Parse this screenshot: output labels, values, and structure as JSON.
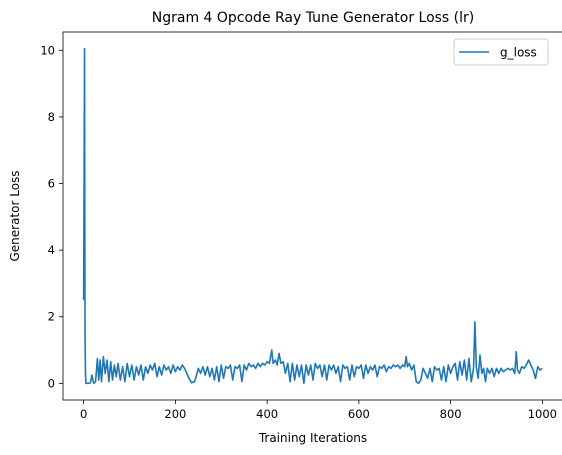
{
  "chart_data": {
    "type": "line",
    "title": "Ngram 4 Opcode Ray Tune Generator Loss (lr)",
    "xlabel": "Training Iterations",
    "ylabel": "Generator Loss",
    "xlim": [
      -45,
      1045
    ],
    "ylim": [
      -0.5,
      10.55
    ],
    "xticks": [
      0,
      200,
      400,
      600,
      800,
      1000
    ],
    "yticks": [
      0,
      2,
      4,
      6,
      8,
      10
    ],
    "grid": false,
    "legend_position": "top-right",
    "series": [
      {
        "name": "g_loss",
        "color": "#1f77b4",
        "points": [
          [
            0,
            2.5
          ],
          [
            2,
            10.05
          ],
          [
            3,
            1.5
          ],
          [
            4,
            0.3
          ],
          [
            5,
            0.0
          ],
          [
            10,
            0.0
          ],
          [
            15,
            0.02
          ],
          [
            18,
            0.25
          ],
          [
            22,
            0.0
          ],
          [
            26,
            0.05
          ],
          [
            30,
            0.75
          ],
          [
            33,
            0.1
          ],
          [
            36,
            0.7
          ],
          [
            39,
            0.05
          ],
          [
            43,
            0.8
          ],
          [
            47,
            0.3
          ],
          [
            51,
            0.7
          ],
          [
            55,
            0.05
          ],
          [
            59,
            0.65
          ],
          [
            63,
            0.1
          ],
          [
            67,
            0.55
          ],
          [
            71,
            0.2
          ],
          [
            75,
            0.6
          ],
          [
            80,
            0.1
          ],
          [
            85,
            0.5
          ],
          [
            90,
            0.05
          ],
          [
            95,
            0.6
          ],
          [
            100,
            0.2
          ],
          [
            105,
            0.55
          ],
          [
            110,
            0.1
          ],
          [
            115,
            0.5
          ],
          [
            120,
            0.25
          ],
          [
            125,
            0.55
          ],
          [
            130,
            0.1
          ],
          [
            135,
            0.5
          ],
          [
            140,
            0.3
          ],
          [
            145,
            0.55
          ],
          [
            150,
            0.4
          ],
          [
            155,
            0.6
          ],
          [
            160,
            0.2
          ],
          [
            165,
            0.5
          ],
          [
            170,
            0.25
          ],
          [
            175,
            0.55
          ],
          [
            180,
            0.4
          ],
          [
            185,
            0.5
          ],
          [
            190,
            0.3
          ],
          [
            195,
            0.55
          ],
          [
            200,
            0.35
          ],
          [
            205,
            0.5
          ],
          [
            210,
            0.4
          ],
          [
            215,
            0.55
          ],
          [
            220,
            0.45
          ],
          [
            228,
            0.2
          ],
          [
            235,
            0.02
          ],
          [
            242,
            0.05
          ],
          [
            250,
            0.45
          ],
          [
            255,
            0.3
          ],
          [
            260,
            0.5
          ],
          [
            265,
            0.25
          ],
          [
            270,
            0.5
          ],
          [
            275,
            0.2
          ],
          [
            280,
            0.45
          ],
          [
            285,
            0.1
          ],
          [
            290,
            0.5
          ],
          [
            295,
            0.05
          ],
          [
            300,
            0.55
          ],
          [
            305,
            0.15
          ],
          [
            310,
            0.5
          ],
          [
            315,
            0.45
          ],
          [
            320,
            0.55
          ],
          [
            325,
            0.1
          ],
          [
            330,
            0.5
          ],
          [
            335,
            0.45
          ],
          [
            340,
            0.55
          ],
          [
            345,
            0.05
          ],
          [
            350,
            0.55
          ],
          [
            355,
            0.4
          ],
          [
            360,
            0.6
          ],
          [
            365,
            0.5
          ],
          [
            370,
            0.55
          ],
          [
            375,
            0.45
          ],
          [
            380,
            0.6
          ],
          [
            385,
            0.5
          ],
          [
            390,
            0.6
          ],
          [
            395,
            0.55
          ],
          [
            400,
            0.65
          ],
          [
            405,
            0.6
          ],
          [
            410,
            1.0
          ],
          [
            413,
            0.6
          ],
          [
            418,
            0.7
          ],
          [
            422,
            0.55
          ],
          [
            426,
            0.9
          ],
          [
            430,
            0.6
          ],
          [
            435,
            0.65
          ],
          [
            440,
            0.3
          ],
          [
            445,
            0.6
          ],
          [
            450,
            0.05
          ],
          [
            455,
            0.6
          ],
          [
            460,
            0.1
          ],
          [
            465,
            0.55
          ],
          [
            470,
            0.2
          ],
          [
            475,
            0.55
          ],
          [
            480,
            0.0
          ],
          [
            485,
            0.55
          ],
          [
            490,
            0.25
          ],
          [
            495,
            0.55
          ],
          [
            500,
            0.1
          ],
          [
            505,
            0.6
          ],
          [
            510,
            0.45
          ],
          [
            515,
            0.55
          ],
          [
            520,
            0.2
          ],
          [
            525,
            0.55
          ],
          [
            530,
            0.1
          ],
          [
            535,
            0.55
          ],
          [
            540,
            0.4
          ],
          [
            545,
            0.55
          ],
          [
            550,
            0.3
          ],
          [
            555,
            0.5
          ],
          [
            560,
            0.05
          ],
          [
            565,
            0.55
          ],
          [
            570,
            0.45
          ],
          [
            575,
            0.5
          ],
          [
            580,
            0.1
          ],
          [
            585,
            0.55
          ],
          [
            590,
            0.2
          ],
          [
            595,
            0.5
          ],
          [
            600,
            0.45
          ],
          [
            605,
            0.55
          ],
          [
            610,
            0.15
          ],
          [
            615,
            0.55
          ],
          [
            620,
            0.3
          ],
          [
            625,
            0.5
          ],
          [
            630,
            0.4
          ],
          [
            635,
            0.55
          ],
          [
            640,
            0.2
          ],
          [
            645,
            0.5
          ],
          [
            650,
            0.45
          ],
          [
            655,
            0.55
          ],
          [
            660,
            0.35
          ],
          [
            665,
            0.5
          ],
          [
            670,
            0.45
          ],
          [
            675,
            0.55
          ],
          [
            680,
            0.5
          ],
          [
            685,
            0.55
          ],
          [
            690,
            0.45
          ],
          [
            695,
            0.55
          ],
          [
            700,
            0.5
          ],
          [
            703,
            0.8
          ],
          [
            706,
            0.5
          ],
          [
            710,
            0.6
          ],
          [
            715,
            0.4
          ],
          [
            720,
            0.55
          ],
          [
            725,
            0.05
          ],
          [
            730,
            0.0
          ],
          [
            735,
            0.1
          ],
          [
            740,
            0.45
          ],
          [
            745,
            0.3
          ],
          [
            750,
            0.15
          ],
          [
            755,
            0.45
          ],
          [
            760,
            0.05
          ],
          [
            765,
            0.5
          ],
          [
            770,
            0.4
          ],
          [
            775,
            0.45
          ],
          [
            780,
            0.1
          ],
          [
            785,
            0.5
          ],
          [
            790,
            0.05
          ],
          [
            795,
            0.55
          ],
          [
            800,
            0.3
          ],
          [
            805,
            0.5
          ],
          [
            810,
            0.6
          ],
          [
            815,
            0.1
          ],
          [
            820,
            0.65
          ],
          [
            825,
            0.25
          ],
          [
            830,
            0.7
          ],
          [
            835,
            0.1
          ],
          [
            840,
            0.75
          ],
          [
            845,
            0.05
          ],
          [
            850,
            0.45
          ],
          [
            853,
            1.85
          ],
          [
            856,
            0.5
          ],
          [
            860,
            0.15
          ],
          [
            864,
            0.85
          ],
          [
            868,
            0.3
          ],
          [
            872,
            0.45
          ],
          [
            876,
            0.05
          ],
          [
            880,
            0.45
          ],
          [
            885,
            0.3
          ],
          [
            890,
            0.45
          ],
          [
            895,
            0.2
          ],
          [
            900,
            0.45
          ],
          [
            905,
            0.3
          ],
          [
            910,
            0.45
          ],
          [
            915,
            0.35
          ],
          [
            920,
            0.4
          ],
          [
            925,
            0.45
          ],
          [
            930,
            0.4
          ],
          [
            935,
            0.45
          ],
          [
            940,
            0.3
          ],
          [
            943,
            0.95
          ],
          [
            946,
            0.4
          ],
          [
            950,
            0.3
          ],
          [
            955,
            0.5
          ],
          [
            960,
            0.45
          ],
          [
            965,
            0.55
          ],
          [
            970,
            0.7
          ],
          [
            975,
            0.55
          ],
          [
            980,
            0.4
          ],
          [
            985,
            0.15
          ],
          [
            990,
            0.5
          ],
          [
            995,
            0.4
          ],
          [
            1000,
            0.45
          ]
        ]
      }
    ]
  }
}
